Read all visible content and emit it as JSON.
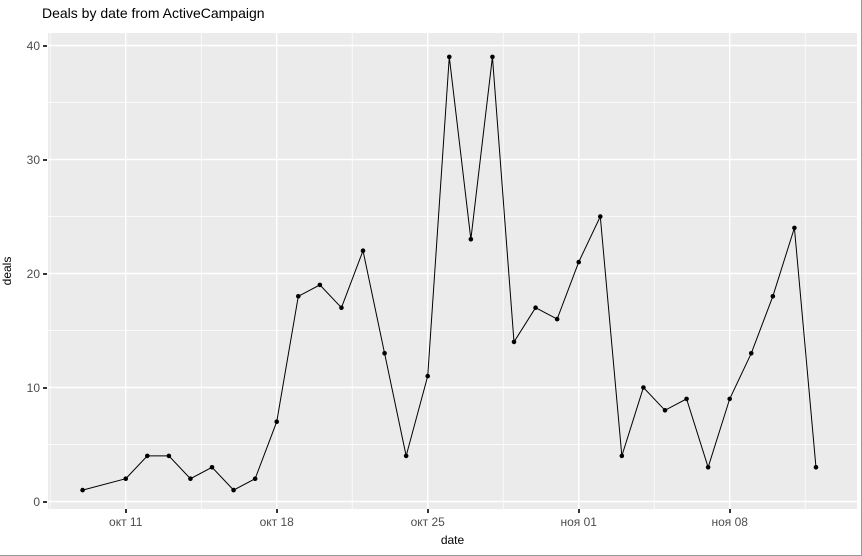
{
  "title": "Deals by date from ActiveCampaign",
  "axes": {
    "x_title": "date",
    "y_title": "deals",
    "x_tick_labels": [
      "окт 11",
      "окт 18",
      "окт 25",
      "ноя 01",
      "ноя 08"
    ],
    "y_tick_labels": [
      "0",
      "10",
      "20",
      "30",
      "40"
    ]
  },
  "colors": {
    "panel_background": "#EBEBEB",
    "grid": "#FFFFFF",
    "line": "#000000",
    "point": "#000000",
    "tick_text": "#4D4D4D",
    "title_text": "#000000"
  },
  "chart_data": {
    "type": "line",
    "title": "Deals by date from ActiveCampaign",
    "xlabel": "date",
    "ylabel": "deals",
    "ylim": [
      0,
      40
    ],
    "grid": true,
    "legend": "none",
    "style": "ggplot2 gray panel, black line with point markers, weekly x breaks",
    "x_dates": [
      "окт 09",
      "окт 11",
      "окт 12",
      "окт 13",
      "окт 14",
      "окт 15",
      "окт 16",
      "окт 17",
      "окт 18",
      "окт 19",
      "окт 20",
      "окт 21",
      "окт 22",
      "окт 23",
      "окт 24",
      "окт 25",
      "окт 26",
      "окт 27",
      "окт 28",
      "окт 29",
      "окт 30",
      "окт 31",
      "ноя 01",
      "ноя 02",
      "ноя 03",
      "ноя 04",
      "ноя 05",
      "ноя 06",
      "ноя 07",
      "ноя 08",
      "ноя 09",
      "ноя 10",
      "ноя 11",
      "ноя 12"
    ],
    "values": [
      1,
      2,
      4,
      4,
      2,
      3,
      1,
      2,
      7,
      18,
      19,
      17,
      22,
      13,
      4,
      11,
      39,
      23,
      39,
      14,
      17,
      16,
      21,
      25,
      4,
      10,
      8,
      9,
      3,
      9,
      13,
      18,
      24,
      3
    ],
    "x_major_breaks": [
      "окт 11",
      "окт 18",
      "окт 25",
      "ноя 01",
      "ноя 08"
    ],
    "y_major_breaks": [
      0,
      10,
      20,
      30,
      40
    ],
    "y_minor_breaks": [
      5,
      15,
      25,
      35
    ]
  }
}
